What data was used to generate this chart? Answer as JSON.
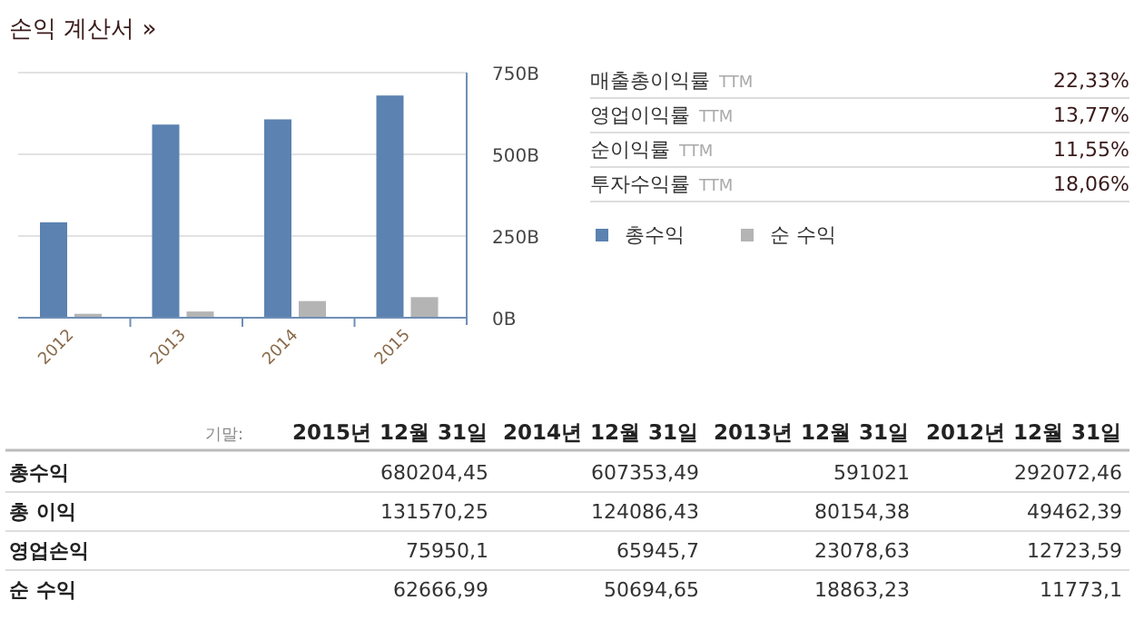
{
  "chart_data": [
    {
      "type": "bar",
      "title": "손익 계산서 »",
      "categories": [
        "2012",
        "2013",
        "2014",
        "2015"
      ],
      "series": [
        {
          "name": "총수익",
          "color": "#5b82b0",
          "values": [
            292,
            591,
            607,
            680
          ]
        },
        {
          "name": "순 수익",
          "color": "#b4b4b4",
          "values": [
            12,
            19,
            51,
            63
          ]
        }
      ],
      "ylim": [
        0,
        750
      ],
      "yticks": [
        {
          "value": 0,
          "label": "0B"
        },
        {
          "value": 250,
          "label": "250B"
        },
        {
          "value": 500,
          "label": "500B"
        },
        {
          "value": 750,
          "label": "750B"
        }
      ],
      "grid": "y",
      "legend": "right"
    },
    {
      "type": "other",
      "categories": [
        "매출총이익률",
        "영업이익률",
        "순이익률",
        "투자수익률"
      ],
      "annotations": [
        "TTM"
      ],
      "value_labels": [
        "22,33%",
        "13,77%",
        "11,55%",
        "18,06%"
      ]
    },
    {
      "type": "other",
      "title": "기말:",
      "categories": [
        "2015년 12월 31일",
        "2014년 12월 31일",
        "2013년 12월 31일",
        "2012년 12월 31일"
      ],
      "y_categories": [
        "총수익",
        "총 이익",
        "영업손익",
        "순 수익"
      ],
      "cell_labels": [
        [
          "680204,45",
          "607353,49",
          "591021",
          "292072,46"
        ],
        [
          "131570,25",
          "124086,43",
          "80154,38",
          "49462,39"
        ],
        [
          "75950,1",
          "65945,7",
          "23078,63",
          "12723,59"
        ],
        [
          "62666,99",
          "50694,65",
          "18863,23",
          "11773,1"
        ]
      ]
    }
  ]
}
